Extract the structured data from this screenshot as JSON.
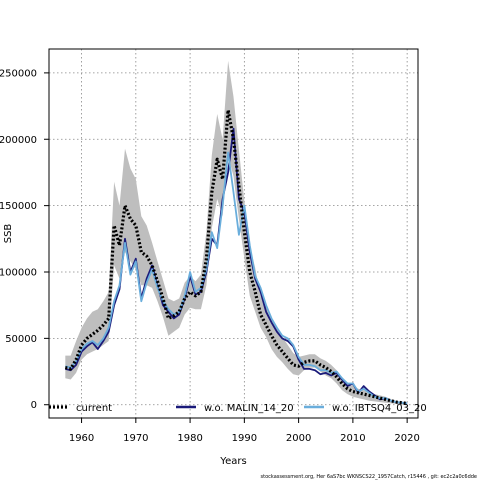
{
  "chart_data": {
    "type": "line",
    "xlabel": "Years",
    "ylabel": "SSB",
    "xlim": [
      1954,
      2022
    ],
    "ylim": [
      -10000,
      268000
    ],
    "x_ticks": [
      1960,
      1970,
      1980,
      1990,
      2000,
      2010,
      2020
    ],
    "y_ticks": [
      0,
      50000,
      100000,
      150000,
      200000,
      250000
    ],
    "grid": true,
    "legend_position": "bottom",
    "footer": "stockassessment.org, Her 6aS7bc WKNSCS22_1957Catch, r15446 , git: ec2c2a0c6dde",
    "series": [
      {
        "name": "current",
        "color": "#000000",
        "style": "dashed-thick",
        "x": [
          1957,
          1958,
          1959,
          1960,
          1961,
          1962,
          1963,
          1964,
          1965,
          1966,
          1967,
          1968,
          1969,
          1970,
          1971,
          1972,
          1973,
          1974,
          1975,
          1976,
          1977,
          1978,
          1979,
          1980,
          1981,
          1982,
          1983,
          1984,
          1985,
          1986,
          1987,
          1988,
          1989,
          1990,
          1991,
          1992,
          1993,
          1994,
          1995,
          1996,
          1997,
          1998,
          1999,
          2000,
          2001,
          2002,
          2003,
          2004,
          2005,
          2006,
          2007,
          2008,
          2009,
          2010,
          2011,
          2012,
          2013,
          2014,
          2015,
          2016,
          2017,
          2018,
          2019,
          2020
        ],
        "values": [
          28000,
          27000,
          34000,
          45000,
          50000,
          53000,
          56000,
          60000,
          65000,
          135000,
          120000,
          150000,
          140000,
          135000,
          115000,
          112000,
          105000,
          93000,
          80000,
          65000,
          67000,
          70000,
          80000,
          85000,
          82000,
          85000,
          110000,
          160000,
          185000,
          170000,
          222000,
          200000,
          165000,
          130000,
          100000,
          85000,
          68000,
          60000,
          52000,
          45000,
          40000,
          35000,
          30000,
          29000,
          32000,
          33000,
          33000,
          30000,
          28000,
          25000,
          21000,
          16000,
          12000,
          10000,
          9000,
          8000,
          7000,
          6000,
          5000,
          4000,
          3000,
          2000,
          1500,
          1000
        ]
      },
      {
        "name": "w.o. MALIN_14_20",
        "color": "#1a1a7a",
        "style": "solid",
        "x": [
          1957,
          1958,
          1959,
          1960,
          1961,
          1962,
          1963,
          1964,
          1965,
          1966,
          1967,
          1968,
          1969,
          1970,
          1971,
          1972,
          1973,
          1974,
          1975,
          1976,
          1977,
          1978,
          1979,
          1980,
          1981,
          1982,
          1983,
          1984,
          1985,
          1986,
          1987,
          1988,
          1989,
          1990,
          1991,
          1992,
          1993,
          1994,
          1995,
          1996,
          1997,
          1998,
          1999,
          2000,
          2001,
          2002,
          2003,
          2004,
          2005,
          2006,
          2007,
          2008,
          2009,
          2010,
          2011,
          2012,
          2013,
          2014,
          2015,
          2016,
          2017,
          2018,
          2019,
          2020
        ],
        "values": [
          27000,
          26000,
          30000,
          40000,
          44000,
          47000,
          42000,
          48000,
          55000,
          75000,
          87000,
          125000,
          100000,
          110000,
          80000,
          95000,
          105000,
          90000,
          75000,
          70000,
          65000,
          68000,
          80000,
          97000,
          83000,
          85000,
          100000,
          125000,
          120000,
          155000,
          175000,
          208000,
          155000,
          145000,
          115000,
          95000,
          85000,
          70000,
          62000,
          55000,
          50000,
          48000,
          44000,
          34000,
          27000,
          27000,
          26000,
          23000,
          24000,
          22000,
          24000,
          19000,
          14000,
          16000,
          9000,
          14000,
          10000,
          7000,
          4000,
          5000,
          3000,
          2000,
          1500,
          1000
        ]
      },
      {
        "name": "w.o. IBTSQ4_03_20",
        "color": "#6aaedc",
        "style": "solid",
        "x": [
          1957,
          1958,
          1959,
          1960,
          1961,
          1962,
          1963,
          1964,
          1965,
          1966,
          1967,
          1968,
          1969,
          1970,
          1971,
          1972,
          1973,
          1974,
          1975,
          1976,
          1977,
          1978,
          1979,
          1980,
          1981,
          1982,
          1983,
          1984,
          1985,
          1986,
          1987,
          1988,
          1989,
          1990,
          1991,
          1992,
          1993,
          1994,
          1995,
          1996,
          1997,
          1998,
          1999,
          2000,
          2001,
          2002,
          2003,
          2004,
          2005,
          2006,
          2007,
          2008,
          2009,
          2010,
          2011,
          2012,
          2013,
          2014,
          2015,
          2016,
          2017,
          2018,
          2019,
          2020
        ],
        "values": [
          29000,
          28000,
          33000,
          42000,
          46000,
          48000,
          45000,
          50000,
          58000,
          78000,
          90000,
          122000,
          98000,
          108000,
          78000,
          92000,
          102000,
          88000,
          78000,
          72000,
          68000,
          70000,
          82000,
          100000,
          85000,
          88000,
          102000,
          130000,
          118000,
          150000,
          190000,
          160000,
          128000,
          150000,
          120000,
          97000,
          88000,
          75000,
          65000,
          58000,
          52000,
          50000,
          45000,
          36000,
          30000,
          30000,
          29000,
          26000,
          26000,
          24000,
          25000,
          20000,
          16000,
          16000,
          10000,
          12000,
          9000,
          6000,
          5000,
          5000,
          3000,
          2000,
          1500,
          1000
        ]
      }
    ],
    "confidence_band": {
      "series": "current",
      "color": "#bebebe",
      "x": [
        1957,
        1958,
        1959,
        1960,
        1961,
        1962,
        1963,
        1964,
        1965,
        1966,
        1967,
        1968,
        1969,
        1970,
        1971,
        1972,
        1973,
        1974,
        1975,
        1976,
        1977,
        1978,
        1979,
        1980,
        1981,
        1982,
        1983,
        1984,
        1985,
        1986,
        1987,
        1988,
        1989,
        1990,
        1991,
        1992,
        1993,
        1994,
        1995,
        1996,
        1997,
        1998,
        1999,
        2000,
        2001,
        2002,
        2003,
        2004,
        2005,
        2006,
        2007,
        2008,
        2009,
        2010,
        2011,
        2012,
        2013,
        2014,
        2015,
        2016,
        2017,
        2018,
        2019,
        2020
      ],
      "upper": [
        37000,
        37000,
        48000,
        58000,
        65000,
        70000,
        72000,
        78000,
        85000,
        168000,
        150000,
        193000,
        178000,
        170000,
        142000,
        135000,
        122000,
        108000,
        94000,
        80000,
        78000,
        80000,
        92000,
        97000,
        93000,
        98000,
        130000,
        188000,
        219000,
        200000,
        259000,
        232000,
        192000,
        153000,
        120000,
        103000,
        82000,
        74000,
        65000,
        57000,
        51000,
        45000,
        39000,
        36000,
        37000,
        38000,
        38000,
        35000,
        33000,
        30000,
        26000,
        20000,
        16000,
        14000,
        12000,
        11000,
        9000,
        8000,
        7000,
        6000,
        4000,
        3000,
        2000,
        1500
      ],
      "lower": [
        20000,
        19000,
        24000,
        34000,
        38000,
        40000,
        42000,
        45000,
        48000,
        105000,
        95000,
        115000,
        108000,
        102000,
        90000,
        90000,
        88000,
        78000,
        66000,
        52000,
        55000,
        58000,
        68000,
        73000,
        72000,
        72000,
        90000,
        133000,
        155000,
        142000,
        188000,
        172000,
        140000,
        110000,
        82000,
        70000,
        58000,
        51000,
        42000,
        36000,
        32000,
        27000,
        23000,
        22000,
        26000,
        28000,
        28000,
        25000,
        22000,
        20000,
        16000,
        11000,
        8000,
        6000,
        5000,
        4000,
        3000,
        2500,
        2000,
        1500,
        1000,
        800,
        500,
        300
      ]
    }
  }
}
